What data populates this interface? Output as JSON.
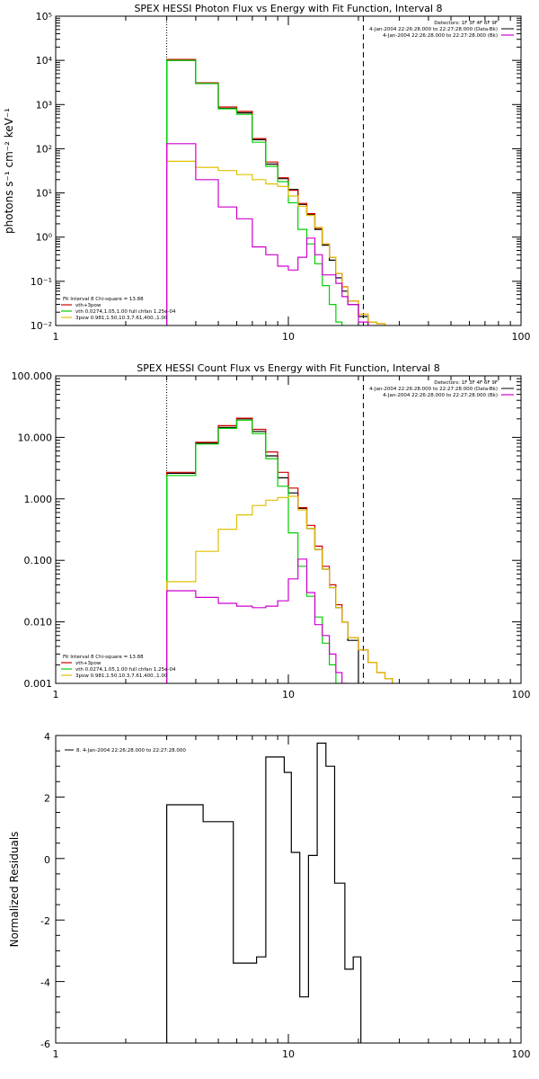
{
  "colors": {
    "frame": "#000000",
    "data": "#000000",
    "vth_plus_3pow": "#d00000",
    "vth": "#00d000",
    "three_pow": "#e0c000",
    "background": "#d000d0"
  },
  "chart_data": [
    {
      "type": "line",
      "title": "SPEX HESSI Photon Flux vs Energy with Fit Function, Interval 8",
      "xlabel": "",
      "ylabel": "photons s⁻¹ cm⁻² keV⁻¹",
      "xscale": "log",
      "yscale": "log",
      "xlim": [
        1,
        100
      ],
      "ylim": [
        0.01,
        100000
      ],
      "xticks": [
        "1",
        "10",
        "100"
      ],
      "yticks": [
        "10⁻²",
        "10⁻¹",
        "10⁰",
        "10¹",
        "10²",
        "10³",
        "10⁴",
        "10⁵"
      ],
      "vlines": [
        {
          "x": 3.0,
          "style": "dotted"
        },
        {
          "x": 21.0,
          "style": "dashed"
        }
      ],
      "header": [
        "Detectors: 1F 3F 4F 6F 9F",
        "4-Jan-2004 22:26:28.000 to 22:27:28.000 (Data-Bk)",
        "4-Jan-2004 22:26:28.000 to 22:27:28.000 (Bk)"
      ],
      "fit_legend": {
        "title": "Fit Interval 8   Chi-square = 13.88",
        "items": [
          "vth+3pow",
          "vth 0.0274,1.05,1.00  full chfan 1.25e-04",
          "3pow 0.981,1.50,10.3,7.61,400.,1.00"
        ]
      },
      "edges": [
        3.0,
        4.0,
        5.0,
        6.0,
        7.0,
        8.0,
        9.0,
        10.0,
        11.0,
        12.0,
        13.0,
        14.0,
        15.0,
        16.0,
        17.0,
        18.0,
        20.0,
        22.0,
        24.0,
        26.0
      ],
      "series": [
        {
          "name": "",
          "color": "#000000",
          "values": [
            10000,
            3000,
            820,
            650,
            160,
            45,
            21,
            12,
            5.5,
            3.2,
            1.5,
            0.66,
            0.3,
            0.12,
            0.06,
            0.03,
            0.016,
            null,
            null
          ]
        },
        {
          "name": "vth+3pow",
          "color": "#d00000",
          "values": [
            10500,
            3100,
            880,
            700,
            170,
            50,
            22,
            11.5,
            5.8,
            3.4,
            1.6,
            0.7,
            0.35,
            0.15,
            0.075,
            0.036,
            0.018,
            0.012,
            0.011
          ]
        },
        {
          "name": "vth",
          "color": "#00d000",
          "values": [
            10000,
            3000,
            800,
            600,
            140,
            40,
            18,
            6,
            1.5,
            0.7,
            0.25,
            0.08,
            0.03,
            0.012,
            null,
            null,
            null,
            null,
            null
          ]
        },
        {
          "name": "3pow",
          "color": "#e0c000",
          "values": [
            52,
            38,
            32,
            26,
            20,
            16,
            14,
            8.5,
            5,
            3.1,
            1.65,
            0.7,
            0.35,
            0.15,
            0.074,
            0.036,
            0.018,
            0.012,
            0.011
          ]
        },
        {
          "name": "",
          "color": "#d000d0",
          "values": [
            130,
            20,
            4.8,
            2.6,
            0.6,
            0.4,
            0.22,
            0.18,
            0.35,
            0.95,
            0.4,
            0.14,
            0.14,
            0.09,
            0.045,
            0.03,
            0.012,
            null,
            null
          ]
        }
      ]
    },
    {
      "type": "line",
      "title": "SPEX HESSI Count Flux vs Energy with Fit Function, Interval 8",
      "xlabel": "",
      "ylabel": "",
      "xscale": "log",
      "yscale": "log",
      "xlim": [
        1,
        100
      ],
      "ylim": [
        0.001,
        100
      ],
      "xticks": [
        "1",
        "10",
        "100"
      ],
      "yticks": [
        "0.001",
        "0.010",
        "0.100",
        "1.000",
        "10.000",
        "100.000"
      ],
      "vlines": [
        {
          "x": 3.0,
          "style": "dotted"
        },
        {
          "x": 21.0,
          "style": "dashed"
        }
      ],
      "header": [
        "Detectors: 1F 3F 4F 6F 9F",
        "4-Jan-2004 22:26:28.000 to 22:27:28.000 (Data-Bk)",
        "4-Jan-2004 22:26:28.000 to 22:27:28.000 (Bk)"
      ],
      "fit_legend": {
        "title": "Fit Interval 8   Chi-square = 13.88",
        "items": [
          "vth+3pow",
          "vth 0.0274,1.05,1.00  full chfan 1.25e-04",
          "3pow 0.981,1.50,10.3,7.61,400.,1.00"
        ]
      },
      "edges": [
        3.0,
        4.0,
        5.0,
        6.0,
        7.0,
        8.0,
        9.0,
        10.0,
        11.0,
        12.0,
        13.0,
        14.0,
        15.0,
        16.0,
        17.0,
        18.0,
        20.0,
        22.0,
        24.0,
        26.0,
        28.0
      ],
      "series": [
        {
          "name": "",
          "color": "#000000",
          "values": [
            2.6,
            8.0,
            14.5,
            20.0,
            12.5,
            5.0,
            2.2,
            1.25,
            0.7,
            0.33,
            0.15,
            0.072,
            0.036,
            0.017,
            0.01,
            0.005,
            null,
            null,
            null,
            null
          ]
        },
        {
          "name": "vth+3pow",
          "color": "#d00000",
          "values": [
            2.7,
            8.3,
            15.5,
            20.5,
            13.5,
            5.8,
            2.7,
            1.5,
            0.72,
            0.37,
            0.17,
            0.08,
            0.04,
            0.019,
            0.01,
            0.0055,
            0.0035,
            0.0022,
            0.0015,
            0.0012
          ]
        },
        {
          "name": "vth",
          "color": "#00d000",
          "values": [
            2.4,
            7.8,
            14.0,
            19.0,
            11.5,
            4.5,
            1.6,
            0.28,
            0.08,
            0.026,
            0.012,
            0.0045,
            0.002,
            0.001,
            null,
            null,
            null,
            null,
            null,
            null
          ]
        },
        {
          "name": "3pow",
          "color": "#e0c000",
          "values": [
            0.045,
            0.14,
            0.32,
            0.55,
            0.78,
            0.95,
            1.05,
            1.1,
            0.66,
            0.33,
            0.15,
            0.072,
            0.036,
            0.017,
            0.01,
            0.0055,
            0.0035,
            0.0022,
            0.0015,
            0.0012
          ]
        },
        {
          "name": "",
          "color": "#d000d0",
          "values": [
            0.032,
            0.025,
            0.02,
            0.018,
            0.017,
            0.018,
            0.022,
            0.05,
            0.105,
            0.03,
            0.009,
            0.006,
            0.003,
            0.0015,
            0.001,
            null,
            null,
            null,
            null,
            null
          ]
        }
      ]
    },
    {
      "type": "line",
      "title": "",
      "xlabel": "",
      "ylabel": "Normalized Residuals",
      "xscale": "log",
      "yscale": "linear",
      "xlim": [
        1,
        100
      ],
      "ylim": [
        -6,
        4
      ],
      "xticks": [
        "1",
        "10",
        "100"
      ],
      "yticks": [
        "-6",
        "-4",
        "-2",
        "0",
        "2",
        "4"
      ],
      "legend": "8.  4-Jan-2004 22:26:28.000 to 22:27:28.000",
      "edges": [
        3.0,
        3.7,
        4.3,
        5.0,
        5.8,
        6.5,
        7.3,
        8.0,
        8.8,
        9.6,
        10.3,
        11.2,
        12.2,
        13.3,
        14.5,
        15.8,
        17.5,
        19.0,
        20.5
      ],
      "series": [
        {
          "name": "8.  4-Jan-2004 22:26:28.000 to 22:27:28.000",
          "color": "#000000",
          "values": [
            1.75,
            1.75,
            1.2,
            1.2,
            -3.4,
            -3.4,
            -3.2,
            3.3,
            3.3,
            2.8,
            0.2,
            -4.5,
            0.1,
            3.75,
            3.0,
            -0.8,
            -3.6,
            -3.2
          ]
        }
      ]
    }
  ]
}
